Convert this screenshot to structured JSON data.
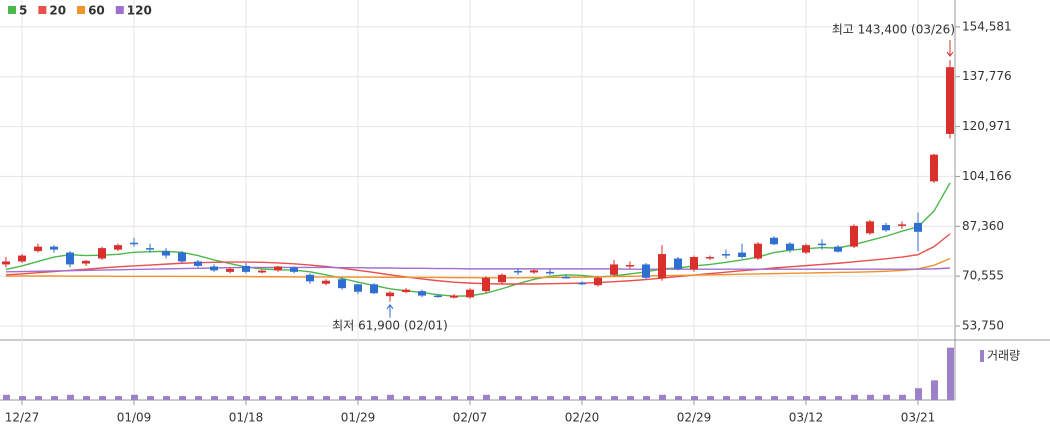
{
  "chart_data": {
    "type": "candlestick",
    "legend": [
      "5",
      "20",
      "60",
      "120"
    ],
    "categories": [
      null,
      "12/27",
      null,
      null,
      null,
      null,
      null,
      null,
      "01/09",
      null,
      null,
      null,
      null,
      null,
      null,
      "01/18",
      null,
      null,
      null,
      null,
      null,
      null,
      "01/29",
      null,
      null,
      null,
      null,
      null,
      null,
      "02/07",
      null,
      null,
      null,
      null,
      null,
      null,
      "02/20",
      null,
      null,
      null,
      null,
      null,
      null,
      "02/29",
      null,
      null,
      null,
      null,
      null,
      null,
      "03/12",
      null,
      null,
      null,
      null,
      null,
      null,
      "03/21",
      null,
      null
    ],
    "open": [
      74500,
      75500,
      79000,
      80500,
      78500,
      74800,
      76500,
      79500,
      81800,
      80000,
      79000,
      78500,
      75500,
      73800,
      72000,
      74000,
      71800,
      72500,
      73500,
      71000,
      68000,
      69500,
      67800,
      67800,
      63800,
      65200,
      65500,
      64000,
      63300,
      63400,
      65500,
      68500,
      72300,
      71800,
      72000,
      70300,
      68300,
      67500,
      71000,
      73800,
      74500,
      69800,
      76500,
      72800,
      76500,
      78000,
      78500,
      76500,
      83500,
      81500,
      78500,
      81500,
      80500,
      80500,
      85000,
      87800,
      87500,
      88500,
      102500,
      118500
    ],
    "high": [
      77000,
      78000,
      81500,
      81000,
      79000,
      76000,
      80500,
      81500,
      83500,
      81500,
      80000,
      79000,
      76000,
      74500,
      73500,
      75000,
      72800,
      74000,
      73800,
      71500,
      69500,
      70000,
      68000,
      68200,
      65500,
      66500,
      66000,
      64500,
      64500,
      66500,
      70500,
      71500,
      73000,
      72800,
      72800,
      71000,
      68800,
      70500,
      76000,
      75500,
      75000,
      81000,
      77000,
      77500,
      77500,
      79500,
      81500,
      82000,
      84000,
      82000,
      81500,
      83000,
      81000,
      88000,
      89500,
      88500,
      89000,
      92000,
      111800,
      143400
    ],
    "low": [
      73500,
      75000,
      78500,
      78500,
      73500,
      74000,
      76000,
      79000,
      80500,
      78500,
      76500,
      75000,
      73500,
      72000,
      71500,
      71500,
      71500,
      72000,
      71500,
      68000,
      67500,
      66000,
      64500,
      64500,
      61900,
      64800,
      63500,
      63300,
      63000,
      63000,
      65000,
      68000,
      71000,
      71300,
      71000,
      69800,
      67500,
      67000,
      70500,
      73000,
      69500,
      69000,
      72500,
      72000,
      76000,
      76500,
      76500,
      76000,
      81000,
      78500,
      78000,
      79500,
      78500,
      80000,
      84500,
      85500,
      86500,
      79000,
      102000,
      117000
    ],
    "close": [
      75500,
      77500,
      80500,
      79500,
      74500,
      75700,
      80000,
      81000,
      81400,
      79600,
      77500,
      75500,
      74000,
      72500,
      73000,
      72000,
      72400,
      73800,
      72000,
      68800,
      69000,
      66500,
      65300,
      64800,
      65000,
      66000,
      64000,
      63500,
      64000,
      66000,
      70000,
      71000,
      72000,
      72500,
      71800,
      70000,
      68000,
      70000,
      74500,
      74300,
      70000,
      78000,
      73000,
      77000,
      77000,
      77500,
      77000,
      81500,
      81300,
      79300,
      81000,
      81200,
      78800,
      87500,
      89000,
      86000,
      88000,
      85500,
      111500,
      141000
    ],
    "series": [
      {
        "name": "5",
        "color": "#4cb84c",
        "values": [
          72800,
          74000,
          75500,
          77000,
          77800,
          77500,
          77600,
          77900,
          78600,
          78800,
          78900,
          78600,
          77500,
          76000,
          74800,
          73600,
          73000,
          72700,
          72600,
          72000,
          71000,
          69800,
          68500,
          67400,
          66300,
          65600,
          65000,
          64300,
          63800,
          63900,
          64800,
          66300,
          68000,
          69500,
          70500,
          71000,
          70800,
          70300,
          70600,
          71300,
          72000,
          73000,
          73300,
          74000,
          74500,
          75200,
          76000,
          77000,
          78500,
          79300,
          79800,
          80200,
          80000,
          81200,
          82600,
          84000,
          85700,
          87200,
          92500,
          102000
        ]
      },
      {
        "name": "20",
        "color": "#e8504e",
        "values": [
          71000,
          71300,
          71700,
          72100,
          72500,
          72900,
          73300,
          73700,
          74000,
          74300,
          74600,
          74900,
          75100,
          75200,
          75300,
          75300,
          75200,
          75000,
          74700,
          74300,
          73800,
          73200,
          72500,
          71800,
          71000,
          70300,
          69600,
          69000,
          68500,
          68200,
          68000,
          67900,
          67900,
          67900,
          68000,
          68100,
          68200,
          68400,
          68700,
          69000,
          69400,
          69900,
          70400,
          70900,
          71400,
          71900,
          72400,
          72800,
          73300,
          73700,
          74100,
          74500,
          74900,
          75400,
          75900,
          76400,
          77000,
          77800,
          80500,
          84800
        ]
      },
      {
        "name": "60",
        "color": "#f0922e",
        "values": [
          70600,
          70600,
          70600,
          70600,
          70550,
          70550,
          70550,
          70500,
          70500,
          70500,
          70500,
          70450,
          70450,
          70400,
          70400,
          70400,
          70350,
          70350,
          70300,
          70300,
          70250,
          70250,
          70200,
          70200,
          70150,
          70150,
          70100,
          70100,
          70050,
          70050,
          70000,
          70000,
          70000,
          70050,
          70100,
          70150,
          70200,
          70300,
          70400,
          70500,
          70600,
          70700,
          70800,
          70900,
          71000,
          71100,
          71200,
          71300,
          71400,
          71500,
          71600,
          71700,
          71800,
          71900,
          72000,
          72200,
          72500,
          73000,
          74200,
          76500
        ]
      },
      {
        "name": "120",
        "color": "#a070d0",
        "values": [
          72000,
          72100,
          72200,
          72300,
          72400,
          72500,
          72600,
          72700,
          72800,
          72900,
          73000,
          73100,
          73200,
          73300,
          73400,
          73500,
          73500,
          73500,
          73500,
          73500,
          73500,
          73400,
          73400,
          73300,
          73300,
          73200,
          73200,
          73100,
          73100,
          73000,
          73000,
          73000,
          73000,
          73000,
          73000,
          73000,
          73000,
          73000,
          73000,
          72900,
          72900,
          72900,
          72900,
          72900,
          72900,
          72900,
          72900,
          72900,
          72900,
          72900,
          72900,
          72900,
          72900,
          72900,
          72900,
          72900,
          72900,
          72900,
          73000,
          73300
        ]
      }
    ],
    "volume_name": "거래량",
    "volume_color": "#9b82c8",
    "volume": [
      4,
      3,
      3,
      3,
      4,
      3,
      3,
      3,
      4,
      3,
      3,
      3,
      3,
      3,
      3,
      3,
      3,
      3,
      3,
      3,
      3,
      3,
      3,
      3,
      4,
      3,
      3,
      3,
      3,
      3,
      4,
      3,
      3,
      3,
      3,
      3,
      3,
      3,
      3,
      3,
      3,
      4,
      3,
      3,
      3,
      3,
      3,
      3,
      3,
      3,
      3,
      3,
      3,
      4,
      4,
      4,
      4,
      9,
      15,
      40
    ],
    "volume_lim": [
      0,
      42
    ],
    "up_color": "#d9302b",
    "down_color": "#2f6fd1",
    "ylim": [
      49700,
      156900
    ],
    "yticks": [
      {
        "value": 53750,
        "label": "53,750"
      },
      {
        "value": 70555,
        "label": "70,555"
      },
      {
        "value": 87360,
        "label": "87,360"
      },
      {
        "value": 104166,
        "label": "104,166"
      },
      {
        "value": 120971,
        "label": "120,971"
      },
      {
        "value": 137776,
        "label": "137,776"
      },
      {
        "value": 154581,
        "label": "154,581"
      }
    ],
    "annotations": [
      {
        "text": "최고 143,400 (03/26)",
        "value": 143400,
        "index": 59,
        "color": "#d9302b"
      },
      {
        "text": "최저 61,900 (02/01)",
        "value": 61900,
        "index": 24,
        "color": "#2f6fd1"
      }
    ],
    "grid": true
  }
}
